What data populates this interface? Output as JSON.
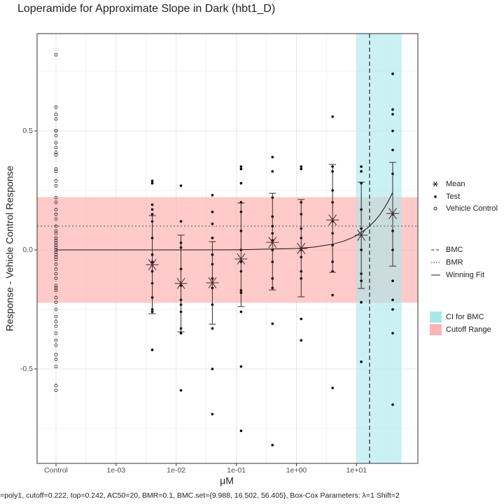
{
  "chart_data": {
    "type": "concentration-response",
    "title": "Loperamide for Approximate Slope in Dark (hbt1_D)",
    "x_label": "μM",
    "y_label": "Response - Vehicle Control Response",
    "caption": "=poly1, cutoff=0.222, top=0.242, AC50=20, BMR=0.1, BMC.set={9.988, 16.502, 56.405}, Box-Cox Parameters: λ=1 Shift=2",
    "xscale": "log",
    "xlim": [
      4.85e-05,
      105
    ],
    "ylim": [
      -0.897,
      0.909
    ],
    "xticks": [
      {
        "value": 0.0001,
        "label": "Control"
      },
      {
        "value": 0.001,
        "label": "1e-03"
      },
      {
        "value": 0.01,
        "label": "1e-02"
      },
      {
        "value": 0.1,
        "label": "1e-01"
      },
      {
        "value": 1,
        "label": "1e+00"
      },
      {
        "value": 10,
        "label": "1e+01"
      }
    ],
    "yticks": [
      -0.5,
      {
        "value": 0,
        "label": "0.0"
      },
      0.5
    ],
    "xminor": [
      0.000316,
      0.00316,
      0.0316,
      0.316,
      3.16,
      31.6
    ],
    "yminor": [
      -0.75,
      -0.25,
      0.25,
      0.75
    ],
    "grid": true,
    "cutoff": 0.222,
    "bmr": 0.1,
    "bmc_set": [
      9.988,
      16.502,
      56.405
    ],
    "ci_color": "#a8e8ec",
    "cutoff_color": "#ffb3b3",
    "point_color": "#000000",
    "mean_color": "#3a2a28",
    "control": {
      "x": 0.0001,
      "values": [
        0.82,
        0.6,
        0.57,
        0.55,
        0.5,
        0.5,
        0.48,
        0.45,
        0.43,
        0.41,
        0.4,
        0.34,
        0.33,
        0.29,
        0.27,
        0.22,
        0.2,
        0.17,
        0.15,
        0.13,
        0.1,
        0.08,
        0.07,
        0.05,
        0.04,
        0.03,
        0.02,
        0.01,
        0,
        -0.01,
        -0.02,
        -0.03,
        -0.04,
        -0.06,
        -0.08,
        -0.1,
        -0.12,
        -0.15,
        -0.16,
        -0.17,
        -0.2,
        -0.22,
        -0.25,
        -0.28,
        -0.3,
        -0.32,
        -0.35,
        -0.38,
        -0.4,
        -0.44,
        -0.46,
        -0.49,
        -0.57,
        -0.59
      ]
    },
    "concentrations": [
      0.004,
      0.012,
      0.04,
      0.12,
      0.4,
      1.2,
      4,
      12,
      40
    ],
    "test": [
      [
        0.29,
        0.28,
        0.19,
        0.17,
        0.15,
        0.12,
        0.05,
        -0.02,
        -0.05,
        -0.09,
        -0.14,
        -0.2,
        -0.25,
        -0.26,
        -0.42
      ],
      [
        0.27,
        0.12,
        0.03,
        0.01,
        -0.08,
        -0.15,
        -0.21,
        -0.23,
        -0.26,
        -0.33,
        -0.35,
        -0.59
      ],
      [
        0.23,
        0.16,
        0.11,
        0.05,
        -0.02,
        -0.06,
        -0.12,
        -0.16,
        -0.23,
        -0.33,
        -0.5,
        -0.69
      ],
      [
        0.35,
        0.34,
        0.28,
        0.2,
        0.16,
        0.08,
        0,
        -0.05,
        -0.09,
        -0.17,
        -0.18,
        -0.26,
        -0.49,
        -0.76
      ],
      [
        0.39,
        0.33,
        0.22,
        0.14,
        0.1,
        0.07,
        0.04,
        0,
        -0.05,
        -0.12,
        -0.16,
        -0.31,
        -0.82
      ],
      [
        0.35,
        0.34,
        0.2,
        0.15,
        0.09,
        0.05,
        0,
        -0.03,
        -0.09,
        -0.12,
        -0.29,
        -0.38
      ],
      [
        0.56,
        0.35,
        0.33,
        0.25,
        0.2,
        0.12,
        0.07,
        0.02,
        -0.05,
        -0.09,
        -0.19,
        -0.58
      ],
      [
        0.35,
        0.33,
        0.28,
        0.17,
        0.09,
        0,
        -0.1,
        -0.13,
        -0.22,
        -0.47
      ],
      [
        0.74,
        0.59,
        0.57,
        0.5,
        0.42,
        0.32,
        0.15,
        0.08,
        0,
        -0.13,
        -0.21,
        -0.25,
        -0.35,
        -0.65
      ]
    ],
    "means": {
      "values": [
        -0.062,
        -0.141,
        -0.138,
        -0.038,
        0.032,
        0.006,
        0.126,
        0.062,
        0.153
      ],
      "lower": [
        -0.268,
        -0.344,
        -0.312,
        -0.238,
        -0.168,
        -0.197,
        -0.094,
        -0.162,
        -0.068
      ],
      "upper": [
        0.144,
        0.062,
        0.035,
        0.197,
        0.238,
        0.212,
        0.359,
        0.285,
        0.368
      ]
    },
    "fit": {
      "x": [
        0.0001,
        0.001,
        0.01,
        0.1,
        1,
        2,
        4,
        6,
        8,
        10,
        15,
        20,
        25,
        30,
        35,
        40
      ],
      "y": [
        6e-07,
        6e-06,
        6e-05,
        0.0006,
        0.006,
        0.0121,
        0.0242,
        0.0363,
        0.0484,
        0.0605,
        0.0908,
        0.121,
        0.151,
        0.182,
        0.212,
        0.242
      ]
    },
    "legend": [
      [
        "Mean",
        "Test",
        "Vehicle Control"
      ],
      [
        "BMC",
        "BMR",
        "Winning Fit"
      ],
      [
        "CI for BMC",
        "Cutoff Range"
      ]
    ]
  }
}
